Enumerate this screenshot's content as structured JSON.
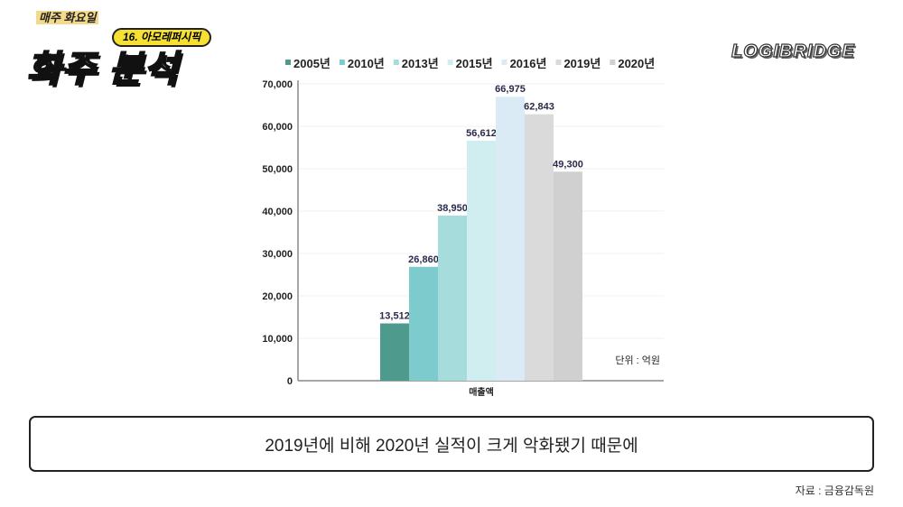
{
  "header": {
    "series_label": "매주 화요일",
    "episode": "16. 아모레퍼시픽",
    "show_title": "화주 분석",
    "brand": "LOGIBRIDGE"
  },
  "chart_data": {
    "type": "bar",
    "categories": [
      "매출액"
    ],
    "series": [
      {
        "name": "2005년",
        "values": [
          13512
        ],
        "label": "13,512",
        "color": "#4e9a8c"
      },
      {
        "name": "2010년",
        "values": [
          26860
        ],
        "label": "26,860",
        "color": "#7ecbcd"
      },
      {
        "name": "2013년",
        "values": [
          38950
        ],
        "label": "38,950",
        "color": "#a6dcdc"
      },
      {
        "name": "2015년",
        "values": [
          56612
        ],
        "label": "56,612",
        "color": "#d0eeef"
      },
      {
        "name": "2016년",
        "values": [
          66975
        ],
        "label": "66,975",
        "color": "#dbebf6"
      },
      {
        "name": "2019년",
        "values": [
          62843
        ],
        "label": "62,843",
        "color": "#dadada"
      },
      {
        "name": "2020년",
        "values": [
          49300
        ],
        "label": "49,300",
        "color": "#d0d0d0"
      }
    ],
    "ylim": [
      0,
      70000
    ],
    "yticks": [
      "0",
      "10,000",
      "20,000",
      "30,000",
      "40,000",
      "50,000",
      "60,000",
      "70,000"
    ],
    "unit_note": "단위 : 억원",
    "legend": "top"
  },
  "caption": "2019년에 비해 2020년 실적이 크게 악화됐기 때문에",
  "source": "자료 : 금융감독원"
}
